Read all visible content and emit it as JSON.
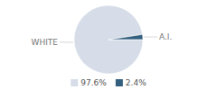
{
  "chart_data": {
    "type": "pie",
    "categories": [
      "WHITE",
      "A.I."
    ],
    "values": [
      97.6,
      2.4
    ],
    "value_labels": [
      "97.6%",
      "2.4%"
    ],
    "colors": [
      "#d6dde8",
      "#34607f"
    ],
    "legend": "bottom"
  }
}
